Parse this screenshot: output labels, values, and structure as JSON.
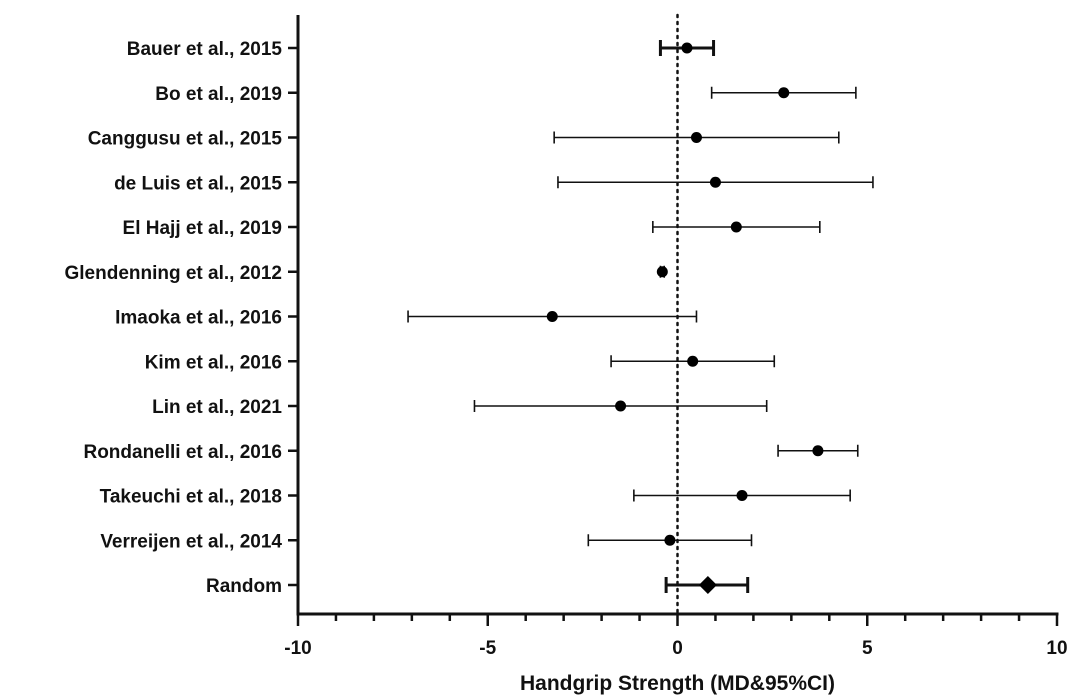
{
  "chart_data": {
    "type": "forest",
    "xlabel": "Handgrip Strength (MD&95%CI)",
    "xlim": [
      -10,
      10
    ],
    "xticks": [
      -10,
      -5,
      0,
      5,
      10
    ],
    "xtick_labels": [
      "-10",
      "-5",
      "0",
      "5",
      "10"
    ],
    "reference_line": 0,
    "studies": [
      {
        "label": "Bauer et al., 2015",
        "md": 0.25,
        "lower": -0.45,
        "upper": 0.95
      },
      {
        "label": "Bo et al., 2019",
        "md": 2.8,
        "lower": 0.9,
        "upper": 4.7
      },
      {
        "label": "Canggusu et al., 2015",
        "md": 0.5,
        "lower": -3.25,
        "upper": 4.25
      },
      {
        "label": "de Luis et al., 2015",
        "md": 1.0,
        "lower": -3.15,
        "upper": 5.15
      },
      {
        "label": "El Hajj et al., 2019",
        "md": 1.55,
        "lower": -0.65,
        "upper": 3.75
      },
      {
        "label": "Glendenning et al., 2012",
        "md": -0.4,
        "lower": -0.45,
        "upper": -0.35
      },
      {
        "label": "Imaoka et al., 2016",
        "md": -3.3,
        "lower": -7.1,
        "upper": 0.5
      },
      {
        "label": "Kim et al., 2016",
        "md": 0.4,
        "lower": -1.75,
        "upper": 2.55
      },
      {
        "label": "Lin et al., 2021",
        "md": -1.5,
        "lower": -5.35,
        "upper": 2.35
      },
      {
        "label": "Rondanelli et al., 2016",
        "md": 3.7,
        "lower": 2.65,
        "upper": 4.75
      },
      {
        "label": "Takeuchi et al., 2018",
        "md": 1.7,
        "lower": -1.15,
        "upper": 4.55
      },
      {
        "label": "Verreijen et al., 2014",
        "md": -0.2,
        "lower": -2.35,
        "upper": 1.95
      },
      {
        "label": "Random",
        "md": 0.8,
        "lower": -0.3,
        "upper": 1.85,
        "pooled": true
      }
    ]
  }
}
